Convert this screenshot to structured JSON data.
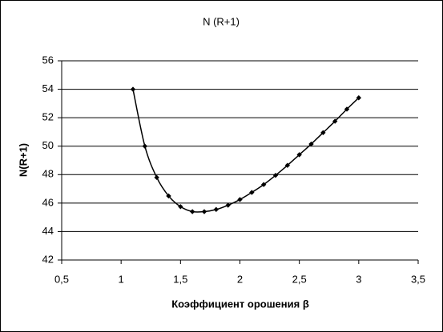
{
  "chart_data": {
    "type": "line",
    "title": "N (R+1)",
    "x_label": "Коэффициент орошения β",
    "y_label": "N(R+1)",
    "x": [
      1.1,
      1.2,
      1.3,
      1.4,
      1.5,
      1.6,
      1.7,
      1.8,
      1.9,
      2.0,
      2.1,
      2.2,
      2.3,
      2.4,
      2.5,
      2.6,
      2.7,
      2.8,
      2.9,
      3.0
    ],
    "series": [
      {
        "name": "N(R+1)",
        "color": "#000000",
        "values": [
          54.0,
          50.0,
          47.8,
          46.5,
          45.75,
          45.4,
          45.4,
          45.55,
          45.85,
          46.25,
          46.75,
          47.3,
          47.95,
          48.65,
          49.4,
          50.15,
          50.95,
          51.75,
          52.6,
          53.4
        ]
      }
    ],
    "xlim": [
      0.5,
      3.5
    ],
    "xticks": [
      {
        "value": 0.5,
        "label": "0,5"
      },
      1,
      {
        "value": 1.5,
        "label": "1,5"
      },
      2,
      {
        "value": 2.5,
        "label": "2,5"
      },
      3,
      {
        "value": 3.5,
        "label": "3,5"
      }
    ],
    "ylim": [
      42,
      56
    ],
    "yticks": [
      42,
      44,
      46,
      48,
      50,
      52,
      54,
      56
    ],
    "grid": true
  }
}
